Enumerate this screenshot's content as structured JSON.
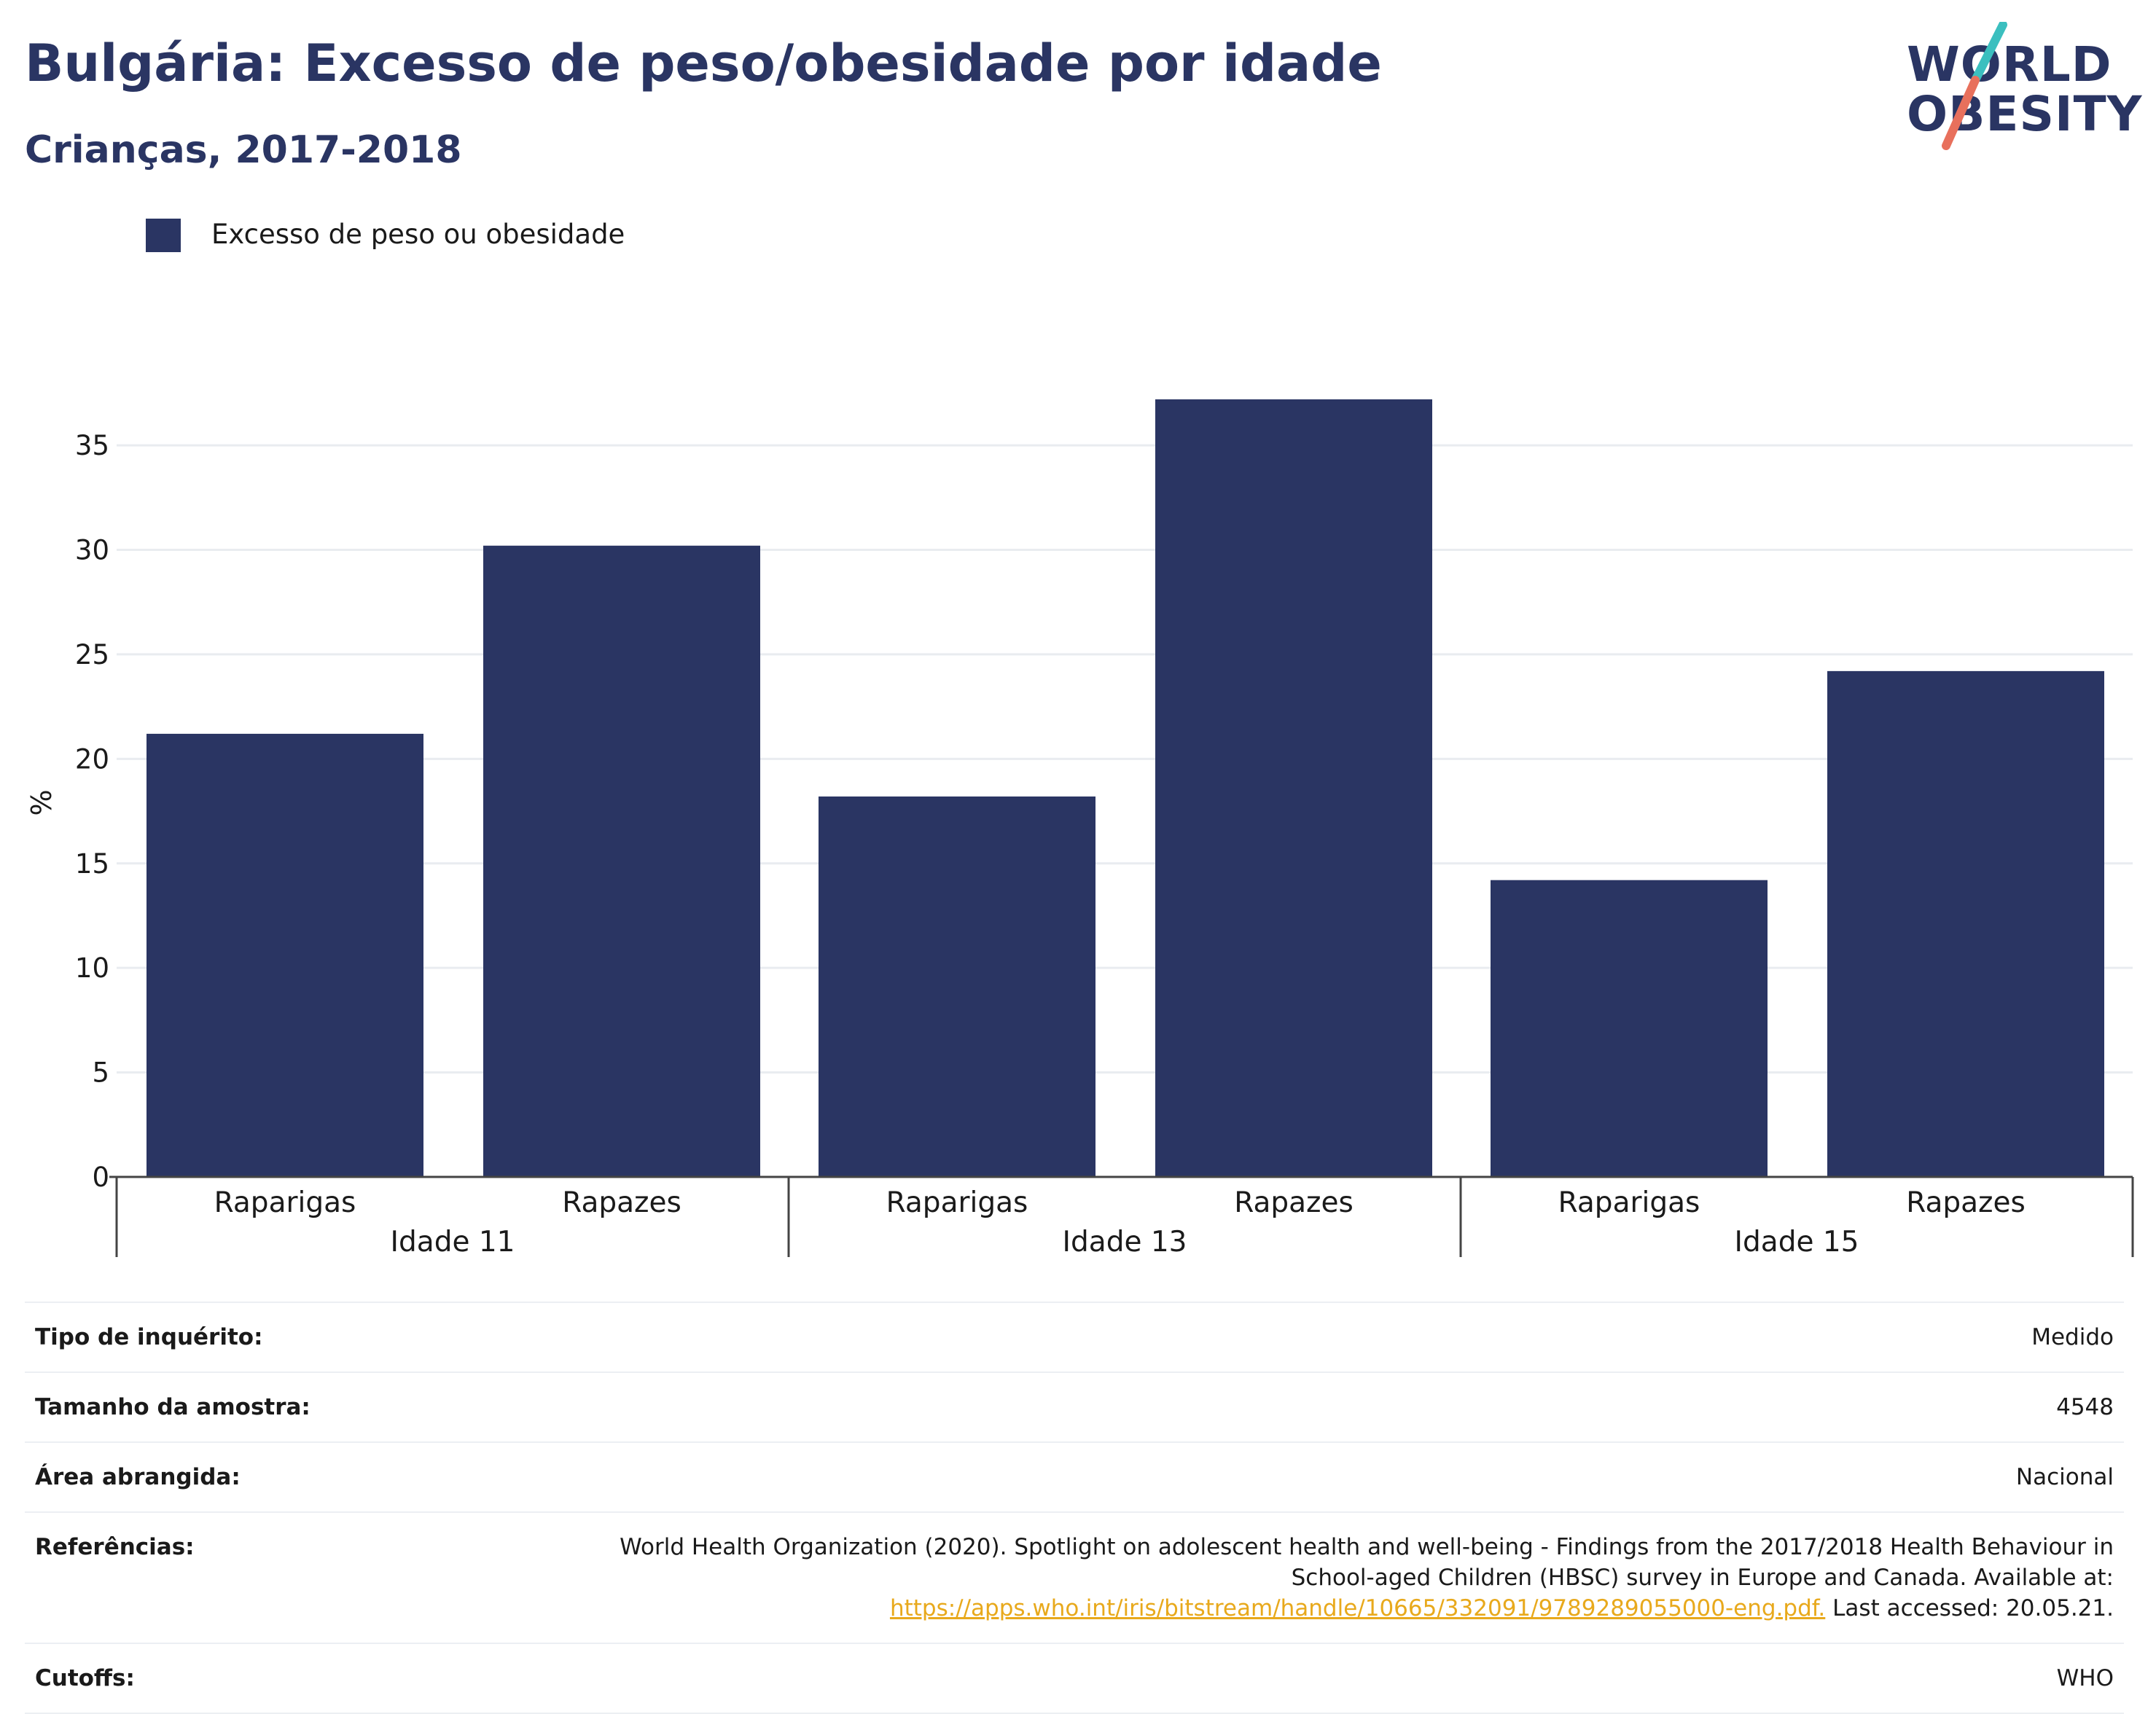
{
  "title": "Bulgária: Excesso de peso/obesidade por idade",
  "subtitle": "Crianças, 2017-2018",
  "logo": {
    "line1": "WORLD",
    "line2": "OBESITY"
  },
  "legend": {
    "label": "Excesso de peso ou obesidade"
  },
  "colors": {
    "bar": "#2a3563",
    "title": "#2a3563",
    "grid": "#e9ecf0",
    "link": "#e8a91c",
    "logo_teal": "#3bbfbf",
    "logo_coral": "#e8705c"
  },
  "chart_data": {
    "type": "bar",
    "ylabel": "%",
    "ylim": [
      0,
      37.2
    ],
    "yticks": [
      0,
      5,
      10,
      15,
      20,
      25,
      30,
      35
    ],
    "grid": true,
    "groups": [
      {
        "label": "Idade 11",
        "categories": [
          "Raparigas",
          "Rapazes"
        ],
        "values": [
          21.2,
          30.2
        ]
      },
      {
        "label": "Idade 13",
        "categories": [
          "Raparigas",
          "Rapazes"
        ],
        "values": [
          18.2,
          37.2
        ]
      },
      {
        "label": "Idade 15",
        "categories": [
          "Raparigas",
          "Rapazes"
        ],
        "values": [
          14.2,
          24.2
        ]
      }
    ],
    "series": [
      {
        "name": "Excesso de peso ou obesidade"
      }
    ],
    "legend_position": "top-left"
  },
  "info": [
    {
      "label": "Tipo de inquérito:",
      "value": "Medido"
    },
    {
      "label": "Tamanho da amostra:",
      "value": "4548"
    },
    {
      "label": "Área abrangida:",
      "value": "Nacional"
    },
    {
      "label": "Referências:",
      "value_line1": "World Health Organization (2020). Spotlight on adolescent health and well-being - Findings from the 2017/2018 Health Behaviour in",
      "value_line2": "School-aged Children (HBSC) survey in Europe and Canada. Available at:",
      "link": "https://apps.who.int/iris/bitstream/handle/10665/332091/9789289055000-eng.pdf.",
      "value_after_link": " Last accessed: 20.05.21."
    },
    {
      "label": "Cutoffs:",
      "value": "WHO"
    }
  ]
}
